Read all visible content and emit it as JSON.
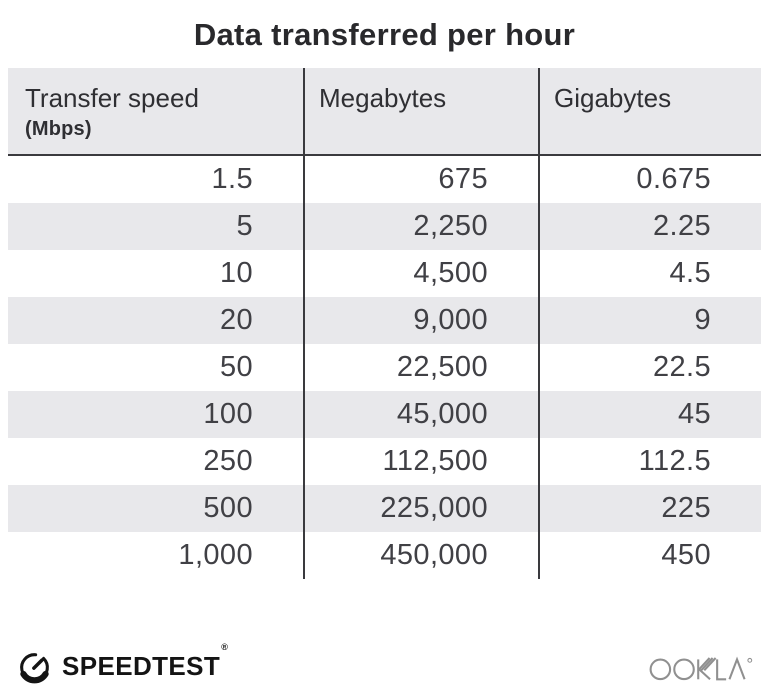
{
  "title": "Data transferred per hour",
  "table": {
    "columns": [
      {
        "label": "Transfer speed",
        "sublabel": "(Mbps)"
      },
      {
        "label": "Megabytes"
      },
      {
        "label": "Gigabytes"
      }
    ],
    "rows": [
      [
        "1.5",
        "675",
        "0.675"
      ],
      [
        "5",
        "2,250",
        "2.25"
      ],
      [
        "10",
        "4,500",
        "4.5"
      ],
      [
        "20",
        "9,000",
        "9"
      ],
      [
        "50",
        "22,500",
        "22.5"
      ],
      [
        "100",
        "45,000",
        "45"
      ],
      [
        "250",
        "112,500",
        "112.5"
      ],
      [
        "500",
        "225,000",
        "225"
      ],
      [
        "1,000",
        "450,000",
        "450"
      ]
    ]
  },
  "footer": {
    "brand": "SPEEDTEST",
    "brand_mark": "®",
    "attribution": "OOKLA"
  },
  "colors": {
    "stripe_bg": "#e8e8eb",
    "header_bg": "#e8e8eb",
    "divider": "#3a3a3e",
    "title_text": "#29292c",
    "number_text": "#404045",
    "ookla_gray": "#909090",
    "brand_black": "#141414"
  },
  "chart_data": {
    "type": "table",
    "title": "Data transferred per hour",
    "columns": [
      "Transfer speed (Mbps)",
      "Megabytes",
      "Gigabytes"
    ],
    "rows": [
      [
        1.5,
        675,
        0.675
      ],
      [
        5,
        2250,
        2.25
      ],
      [
        10,
        4500,
        4.5
      ],
      [
        20,
        9000,
        9
      ],
      [
        50,
        22500,
        22.5
      ],
      [
        100,
        45000,
        45
      ],
      [
        250,
        112500,
        112.5
      ],
      [
        500,
        225000,
        225
      ],
      [
        1000,
        450000,
        450
      ]
    ],
    "layout": {
      "striped_rows": true,
      "column_dividers": true,
      "value_alignment": "right"
    }
  }
}
